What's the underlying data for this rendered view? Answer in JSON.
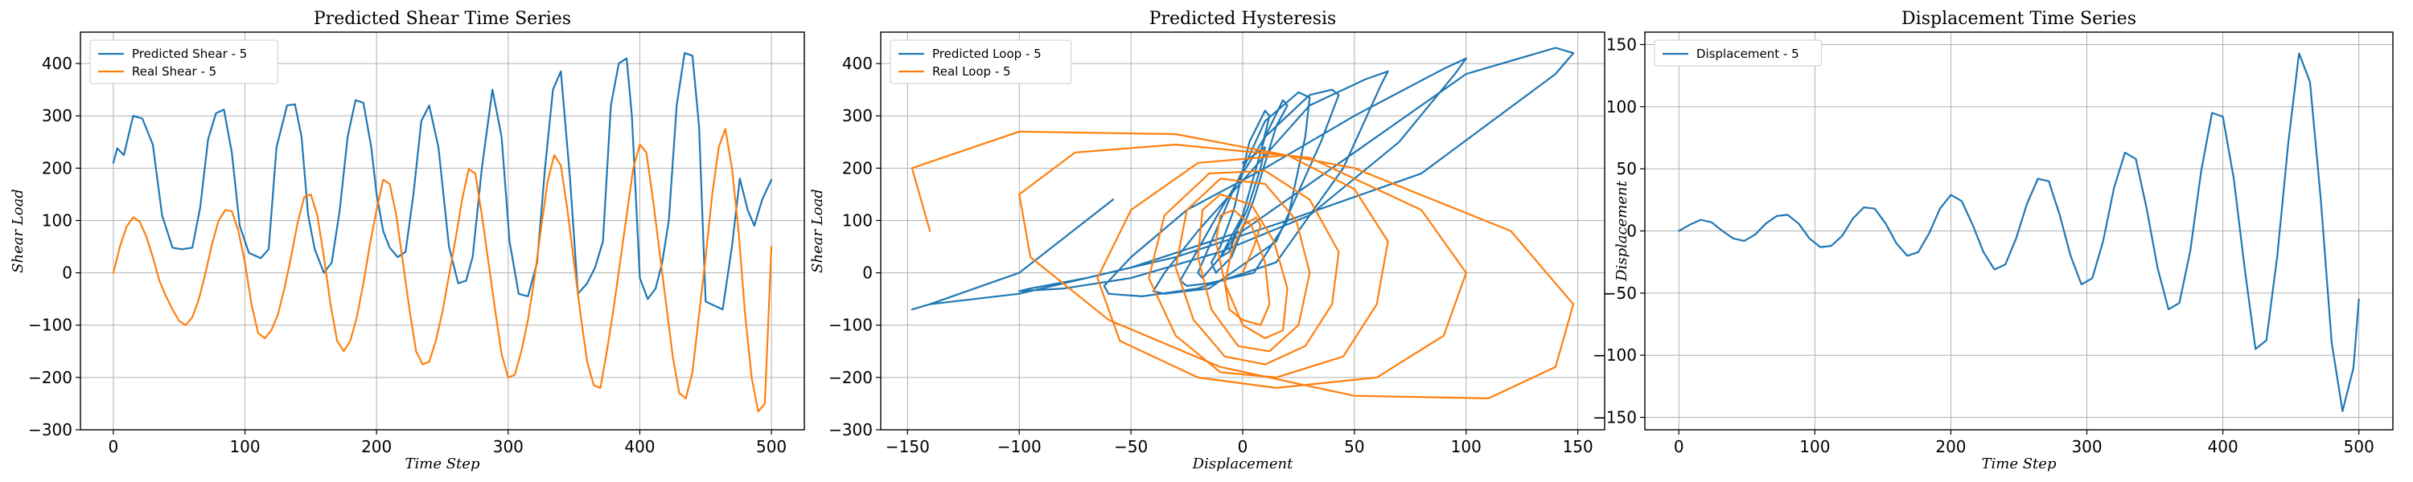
{
  "colors": {
    "blue": "#1f77b4",
    "orange": "#ff7f0e",
    "grid": "#b0b0b0"
  },
  "chart_data": [
    {
      "type": "line",
      "title": "Predicted Shear Time Series",
      "xlabel": "Time Step",
      "ylabel": "Shear Load",
      "xlim": [
        -25,
        525
      ],
      "ylim": [
        -300,
        460
      ],
      "xticks": [
        0,
        100,
        200,
        300,
        400,
        500
      ],
      "yticks": [
        -300,
        -200,
        -100,
        0,
        100,
        200,
        300,
        400
      ],
      "grid": true,
      "legend": "top-left",
      "series": [
        {
          "name": "Predicted Shear - 5",
          "color": "#1f77b4",
          "x": [
            0,
            3,
            8,
            15,
            22,
            30,
            37,
            45,
            52,
            60,
            66,
            72,
            78,
            84,
            90,
            96,
            103,
            112,
            118,
            124,
            132,
            138,
            143,
            148,
            153,
            160,
            166,
            172,
            178,
            184,
            190,
            196,
            200,
            205,
            210,
            216,
            222,
            228,
            234,
            240,
            247,
            255,
            262,
            268,
            273,
            280,
            288,
            295,
            301,
            308,
            315,
            322,
            328,
            334,
            340,
            347,
            353,
            360,
            366,
            372,
            378,
            384,
            390,
            394,
            400,
            406,
            412,
            417,
            422,
            428,
            434,
            440,
            445,
            450,
            456,
            463,
            470,
            476,
            482,
            487,
            493,
            500
          ],
          "y": [
            210,
            238,
            225,
            300,
            295,
            245,
            110,
            48,
            45,
            48,
            125,
            255,
            305,
            312,
            230,
            90,
            38,
            28,
            45,
            240,
            320,
            322,
            260,
            110,
            45,
            0,
            20,
            120,
            260,
            330,
            325,
            240,
            150,
            80,
            48,
            30,
            40,
            150,
            290,
            320,
            240,
            50,
            -20,
            -15,
            30,
            200,
            350,
            260,
            60,
            -40,
            -45,
            20,
            200,
            350,
            385,
            180,
            -40,
            -20,
            10,
            60,
            320,
            400,
            410,
            300,
            -10,
            -50,
            -30,
            20,
            100,
            320,
            420,
            415,
            280,
            -55,
            -62,
            -70,
            50,
            180,
            120,
            90,
            140,
            178
          ]
        },
        {
          "name": "Real Shear - 5",
          "color": "#ff7f0e",
          "x": [
            0,
            5,
            10,
            15,
            20,
            25,
            30,
            35,
            40,
            45,
            50,
            55,
            60,
            65,
            70,
            75,
            80,
            85,
            90,
            95,
            100,
            105,
            110,
            115,
            120,
            125,
            130,
            135,
            140,
            145,
            150,
            155,
            160,
            165,
            170,
            175,
            180,
            185,
            190,
            195,
            200,
            205,
            210,
            215,
            220,
            225,
            230,
            235,
            240,
            245,
            250,
            255,
            260,
            265,
            270,
            275,
            280,
            285,
            290,
            295,
            300,
            305,
            310,
            315,
            320,
            325,
            330,
            335,
            340,
            345,
            350,
            355,
            360,
            365,
            370,
            375,
            380,
            385,
            390,
            395,
            400,
            405,
            410,
            415,
            420,
            425,
            430,
            435,
            440,
            445,
            450,
            455,
            460,
            465,
            470,
            475,
            480,
            485,
            490,
            495,
            500
          ],
          "y": [
            0,
            50,
            88,
            106,
            98,
            70,
            30,
            -15,
            -45,
            -70,
            -92,
            -100,
            -85,
            -50,
            0,
            55,
            100,
            120,
            118,
            80,
            20,
            -60,
            -115,
            -125,
            -110,
            -80,
            -30,
            30,
            95,
            145,
            150,
            110,
            30,
            -60,
            -130,
            -150,
            -130,
            -85,
            -20,
            55,
            120,
            178,
            170,
            110,
            20,
            -70,
            -150,
            -175,
            -170,
            -130,
            -75,
            -5,
            65,
            140,
            198,
            190,
            110,
            20,
            -70,
            -155,
            -200,
            -195,
            -150,
            -90,
            -10,
            85,
            175,
            225,
            205,
            120,
            20,
            -80,
            -170,
            -215,
            -220,
            -150,
            -70,
            20,
            110,
            200,
            245,
            230,
            140,
            40,
            -60,
            -160,
            -230,
            -240,
            -190,
            -80,
            30,
            150,
            240,
            275,
            200,
            80,
            -80,
            -200,
            -265,
            -250,
            50
          ]
        }
      ]
    },
    {
      "type": "line",
      "title": "Predicted Hysteresis",
      "xlabel": "Displacement",
      "ylabel": "Shear Load",
      "xlim": [
        -162,
        162
      ],
      "ylim": [
        -300,
        460
      ],
      "xticks": [
        -150,
        -100,
        -50,
        0,
        50,
        100,
        150
      ],
      "yticks": [
        -300,
        -200,
        -100,
        0,
        100,
        200,
        300,
        400
      ],
      "grid": true,
      "legend": "top-left",
      "series": [
        {
          "name": "Predicted Loop - 5",
          "color": "#1f77b4",
          "x": [
            0,
            5,
            10,
            8,
            2,
            -5,
            -10,
            -6,
            0,
            8,
            12,
            10,
            3,
            -4,
            -10,
            -14,
            -12,
            -5,
            5,
            15,
            20,
            18,
            10,
            0,
            -10,
            -18,
            -20,
            -15,
            -5,
            10,
            25,
            30,
            28,
            20,
            5,
            -15,
            -25,
            -28,
            -22,
            -10,
            10,
            30,
            40,
            43,
            35,
            15,
            -15,
            -35,
            -40,
            -35,
            -20,
            5,
            30,
            55,
            65,
            62,
            45,
            15,
            -20,
            -45,
            -60,
            -62,
            -50,
            -25,
            10,
            50,
            90,
            100,
            95,
            70,
            30,
            -10,
            -50,
            -80,
            -100,
            -95,
            -70,
            -30,
            20,
            80,
            140,
            148,
            140,
            100,
            50,
            0,
            -50,
            -100,
            -140,
            -148,
            -140,
            -100,
            -58
          ],
          "y": [
            210,
            225,
            240,
            200,
            120,
            60,
            30,
            40,
            110,
            230,
            300,
            310,
            250,
            120,
            50,
            20,
            0,
            30,
            140,
            280,
            320,
            330,
            260,
            110,
            30,
            -10,
            0,
            50,
            150,
            290,
            345,
            335,
            260,
            100,
            0,
            -20,
            -25,
            -15,
            30,
            120,
            260,
            340,
            350,
            340,
            250,
            60,
            -30,
            -40,
            -35,
            0,
            80,
            200,
            320,
            370,
            385,
            360,
            200,
            20,
            -30,
            -45,
            -40,
            -25,
            30,
            120,
            200,
            300,
            390,
            410,
            380,
            250,
            110,
            40,
            -10,
            -30,
            -35,
            -30,
            -10,
            30,
            100,
            190,
            380,
            420,
            430,
            380,
            230,
            80,
            10,
            -40,
            -60,
            -70,
            -60,
            0,
            140
          ]
        },
        {
          "name": "Real Loop - 5",
          "color": "#ff7f0e",
          "x": [
            0,
            5,
            8,
            6,
            0,
            -5,
            -8,
            -6,
            0,
            8,
            12,
            10,
            4,
            -4,
            -10,
            -12,
            -8,
            0,
            10,
            18,
            20,
            14,
            4,
            -10,
            -18,
            -20,
            -14,
            -2,
            12,
            25,
            30,
            24,
            10,
            -10,
            -25,
            -30,
            -22,
            -8,
            10,
            28,
            40,
            43,
            30,
            10,
            -15,
            -35,
            -42,
            -30,
            -10,
            15,
            45,
            60,
            65,
            50,
            20,
            -20,
            -50,
            -65,
            -55,
            -20,
            15,
            60,
            90,
            100,
            80,
            30,
            -30,
            -75,
            -100,
            -95,
            -60,
            -10,
            50,
            110,
            140,
            148,
            120,
            50,
            -30,
            -100,
            -148,
            -140
          ],
          "y": [
            0,
            50,
            90,
            106,
            90,
            40,
            -20,
            -70,
            -90,
            -100,
            -60,
            20,
            90,
            120,
            110,
            60,
            -20,
            -100,
            -125,
            -110,
            -30,
            60,
            130,
            150,
            120,
            30,
            -70,
            -140,
            -150,
            -100,
            0,
            100,
            170,
            180,
            120,
            10,
            -90,
            -160,
            -175,
            -140,
            -60,
            40,
            140,
            195,
            190,
            110,
            -10,
            -120,
            -190,
            -200,
            -160,
            -60,
            60,
            160,
            225,
            210,
            120,
            -10,
            -130,
            -200,
            -220,
            -200,
            -120,
            0,
            120,
            220,
            245,
            230,
            150,
            30,
            -90,
            -180,
            -235,
            -240,
            -180,
            -60,
            80,
            200,
            265,
            270,
            200,
            80
          ]
        }
      ]
    },
    {
      "type": "line",
      "title": "Displacement Time Series",
      "xlabel": "Time Step",
      "ylabel": "Displacement",
      "xlim": [
        -25,
        525
      ],
      "ylim": [
        -160,
        160
      ],
      "xticks": [
        0,
        100,
        200,
        300,
        400,
        500
      ],
      "yticks": [
        -150,
        -100,
        -50,
        0,
        50,
        100,
        150
      ],
      "grid": true,
      "legend": "top-left",
      "series": [
        {
          "name": "Displacement - 5",
          "color": "#1f77b4",
          "x": [
            0,
            8,
            16,
            24,
            32,
            40,
            48,
            56,
            64,
            72,
            80,
            88,
            96,
            104,
            112,
            120,
            128,
            136,
            144,
            152,
            160,
            168,
            176,
            184,
            192,
            200,
            208,
            216,
            224,
            232,
            240,
            248,
            256,
            264,
            272,
            280,
            288,
            296,
            304,
            312,
            320,
            328,
            336,
            344,
            352,
            360,
            368,
            376,
            384,
            392,
            400,
            408,
            416,
            424,
            432,
            440,
            448,
            456,
            464,
            472,
            480,
            488,
            496,
            500
          ],
          "y": [
            0,
            5,
            9,
            7,
            0,
            -6,
            -8,
            -3,
            6,
            12,
            13,
            6,
            -6,
            -13,
            -12,
            -4,
            10,
            19,
            18,
            6,
            -10,
            -20,
            -17,
            -2,
            18,
            29,
            24,
            5,
            -17,
            -31,
            -27,
            -6,
            22,
            42,
            40,
            13,
            -20,
            -43,
            -38,
            -8,
            35,
            63,
            58,
            18,
            -30,
            -63,
            -58,
            -16,
            48,
            95,
            92,
            42,
            -30,
            -95,
            -88,
            -20,
            70,
            143,
            120,
            25,
            -90,
            -145,
            -110,
            -55
          ]
        }
      ]
    }
  ]
}
